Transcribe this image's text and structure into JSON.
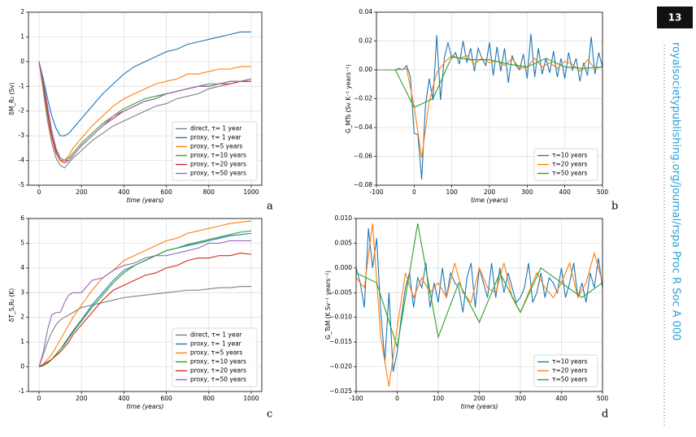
{
  "page_number": "13",
  "running_header": "royalsocietypublishing.org/journal/rspa  Proc R Soc A 000",
  "chart_data": [
    {
      "type": "line",
      "label": "a",
      "xlabel": "time (years)",
      "ylabel": "δM_R₂ (Sv)",
      "xlim": [
        -50,
        1050
      ],
      "xticks": [
        0,
        200,
        400,
        600,
        800,
        1000
      ],
      "ylim": [
        -5,
        2
      ],
      "yticks": [
        -5,
        -4,
        -3,
        -2,
        -1,
        0,
        1,
        2
      ],
      "grid": true,
      "legend": "lower right",
      "x": [
        0,
        20,
        40,
        60,
        80,
        100,
        120,
        140,
        160,
        200,
        250,
        300,
        350,
        400,
        450,
        500,
        550,
        600,
        650,
        700,
        750,
        800,
        850,
        900,
        950,
        1000
      ],
      "series": [
        {
          "name": "direct, τ= 1 year",
          "color": "#7f7f7f",
          "values": [
            0,
            -1.2,
            -2.4,
            -3.3,
            -3.9,
            -4.2,
            -4.3,
            -4.1,
            -3.9,
            -3.6,
            -3.2,
            -2.9,
            -2.6,
            -2.4,
            -2.2,
            -2.0,
            -1.8,
            -1.7,
            -1.5,
            -1.4,
            -1.3,
            -1.1,
            -1.0,
            -0.9,
            -0.8,
            -0.8
          ]
        },
        {
          "name": "proxy, τ= 1 year",
          "color": "#1f77b4",
          "values": [
            0,
            -0.7,
            -1.5,
            -2.2,
            -2.7,
            -3.0,
            -3.0,
            -2.9,
            -2.7,
            -2.3,
            -1.8,
            -1.3,
            -0.9,
            -0.5,
            -0.2,
            0.0,
            0.2,
            0.4,
            0.5,
            0.7,
            0.8,
            0.9,
            1.0,
            1.1,
            1.2,
            1.2
          ]
        },
        {
          "name": "proxy, τ=5 years",
          "color": "#ff7f0e",
          "values": [
            0,
            -1.1,
            -2.2,
            -3.1,
            -3.7,
            -4.0,
            -4.0,
            -3.8,
            -3.5,
            -3.1,
            -2.6,
            -2.2,
            -1.8,
            -1.5,
            -1.3,
            -1.1,
            -0.9,
            -0.8,
            -0.7,
            -0.5,
            -0.5,
            -0.4,
            -0.3,
            -0.3,
            -0.2,
            -0.2
          ]
        },
        {
          "name": "proxy, τ=10 years",
          "color": "#2ca02c",
          "values": [
            0,
            -1.0,
            -2.1,
            -3.0,
            -3.6,
            -3.9,
            -4.0,
            -3.9,
            -3.7,
            -3.3,
            -2.9,
            -2.5,
            -2.2,
            -1.9,
            -1.7,
            -1.5,
            -1.4,
            -1.3,
            -1.2,
            -1.1,
            -1.0,
            -0.9,
            -0.9,
            -0.8,
            -0.8,
            -0.7
          ]
        },
        {
          "name": "proxy, τ=20 years",
          "color": "#d62728",
          "values": [
            0,
            -0.9,
            -2.0,
            -3.0,
            -3.7,
            -4.0,
            -4.1,
            -4.0,
            -3.8,
            -3.4,
            -3.0,
            -2.6,
            -2.3,
            -2.0,
            -1.8,
            -1.6,
            -1.5,
            -1.3,
            -1.2,
            -1.1,
            -1.0,
            -1.0,
            -0.9,
            -0.9,
            -0.8,
            -0.8
          ]
        },
        {
          "name": "proxy, τ=50 years",
          "color": "#9467bd",
          "values": [
            0,
            -0.8,
            -1.8,
            -2.8,
            -3.5,
            -3.9,
            -4.0,
            -4.0,
            -3.8,
            -3.4,
            -3.0,
            -2.6,
            -2.2,
            -2.0,
            -1.8,
            -1.6,
            -1.5,
            -1.3,
            -1.2,
            -1.1,
            -1.0,
            -1.0,
            -0.9,
            -0.8,
            -0.8,
            -0.7
          ]
        }
      ]
    },
    {
      "type": "line",
      "label": "b",
      "xlabel": "time (years)",
      "ylabel": "G_MTs (Sv K⁻¹ years⁻¹)",
      "xlim": [
        -100,
        500
      ],
      "xticks": [
        -100,
        0,
        100,
        200,
        300,
        400,
        500
      ],
      "ylim": [
        -0.08,
        0.04
      ],
      "yticks": [
        {
          "value": -0.08,
          "label": "−0.08"
        },
        {
          "value": -0.06,
          "label": "−0.06"
        },
        {
          "value": -0.04,
          "label": "−0.04"
        },
        {
          "value": -0.02,
          "label": "−0.02"
        },
        {
          "value": 0,
          "label": "0.00"
        },
        0.02,
        0.04
      ],
      "grid": true,
      "legend": "lower right",
      "series": [
        {
          "name": "τ=10 years",
          "color": "#1f77b4",
          "x": [
            -100,
            -90,
            -80,
            -70,
            -60,
            -50,
            -40,
            -30,
            -20,
            -10,
            0,
            10,
            20,
            30,
            40,
            50,
            60,
            70,
            80,
            90,
            100,
            110,
            120,
            130,
            140,
            150,
            160,
            170,
            180,
            190,
            200,
            210,
            220,
            230,
            240,
            250,
            260,
            270,
            280,
            290,
            300,
            310,
            320,
            330,
            340,
            350,
            360,
            370,
            380,
            390,
            400,
            410,
            420,
            430,
            440,
            450,
            460,
            470,
            480,
            490,
            500
          ],
          "values": [
            0,
            0,
            0,
            0,
            0,
            0,
            0.001,
            0,
            0.003,
            -0.005,
            -0.044,
            -0.045,
            -0.076,
            -0.025,
            -0.006,
            -0.021,
            0.024,
            -0.021,
            0.008,
            0.019,
            0.008,
            0.012,
            0.004,
            0.02,
            0.005,
            0.015,
            -0.001,
            0.015,
            0.008,
            0.003,
            0.019,
            -0.004,
            0.016,
            -0.001,
            0.015,
            -0.009,
            0.01,
            0.003,
            0,
            0.011,
            -0.006,
            0.025,
            -0.005,
            0.015,
            -0.003,
            0.008,
            -0.002,
            0.013,
            -0.005,
            0.008,
            -0.006,
            0.012,
            0,
            0.008,
            -0.008,
            0.005,
            -0.004,
            0.023,
            -0.003,
            0.012,
            0.002
          ]
        },
        {
          "name": "τ=20 years",
          "color": "#ff7f0e",
          "x": [
            -100,
            -80,
            -60,
            -40,
            -20,
            0,
            20,
            40,
            60,
            80,
            100,
            120,
            140,
            160,
            180,
            200,
            220,
            240,
            260,
            280,
            300,
            320,
            340,
            360,
            380,
            400,
            420,
            440,
            460,
            480,
            500
          ],
          "values": [
            0,
            0,
            0,
            0,
            0.001,
            -0.025,
            -0.061,
            -0.022,
            -0.002,
            0.005,
            0.01,
            0.008,
            0.01,
            0.004,
            0.008,
            0.005,
            0.006,
            0.003,
            0.008,
            0.001,
            0.002,
            0.008,
            0.002,
            0.005,
            0.001,
            0.006,
            0.004,
            -0.001,
            0.007,
            0.001,
            0.002
          ]
        },
        {
          "name": "τ=50 years",
          "color": "#2ca02c",
          "x": [
            -100,
            -50,
            0,
            50,
            100,
            150,
            200,
            250,
            300,
            350,
            400,
            450,
            500
          ],
          "values": [
            0,
            0,
            -0.026,
            -0.02,
            0.009,
            0.007,
            0.007,
            0.004,
            0.002,
            0.008,
            0.002,
            0.001,
            0.002
          ]
        }
      ]
    },
    {
      "type": "line",
      "label": "c",
      "xlabel": "time (years)",
      "ylabel": "δT_S,R₂ (K)",
      "xlim": [
        -50,
        1050
      ],
      "xticks": [
        0,
        200,
        400,
        600,
        800,
        1000
      ],
      "ylim": [
        -1,
        6
      ],
      "yticks": [
        -1,
        0,
        1,
        2,
        3,
        4,
        5,
        6
      ],
      "grid": true,
      "legend": "lower right",
      "x": [
        0,
        20,
        40,
        60,
        80,
        100,
        120,
        140,
        160,
        200,
        250,
        300,
        350,
        400,
        450,
        500,
        550,
        600,
        650,
        700,
        750,
        800,
        850,
        900,
        950,
        1000
      ],
      "series": [
        {
          "name": "direct, τ= 1 year",
          "color": "#7f7f7f",
          "values": [
            0,
            0.5,
            1.0,
            1.4,
            1.7,
            1.9,
            2.0,
            2.1,
            2.2,
            2.4,
            2.5,
            2.6,
            2.7,
            2.8,
            2.85,
            2.9,
            2.95,
            3.0,
            3.05,
            3.1,
            3.1,
            3.15,
            3.2,
            3.2,
            3.25,
            3.25
          ]
        },
        {
          "name": "proxy, τ= 1 year",
          "color": "#1f77b4",
          "values": [
            0,
            0.05,
            0.15,
            0.3,
            0.5,
            0.7,
            0.95,
            1.2,
            1.45,
            1.9,
            2.5,
            3.0,
            3.5,
            3.9,
            4.1,
            4.3,
            4.5,
            4.7,
            4.8,
            4.9,
            5.0,
            5.1,
            5.2,
            5.3,
            5.35,
            5.4
          ]
        },
        {
          "name": "proxy, τ=5 years",
          "color": "#ff7f0e",
          "values": [
            0,
            0.1,
            0.3,
            0.5,
            0.8,
            1.1,
            1.4,
            1.7,
            2.0,
            2.5,
            3.1,
            3.6,
            3.9,
            4.3,
            4.5,
            4.7,
            4.9,
            5.1,
            5.2,
            5.4,
            5.5,
            5.6,
            5.7,
            5.8,
            5.85,
            5.9
          ]
        },
        {
          "name": "proxy, τ=10 years",
          "color": "#2ca02c",
          "values": [
            0,
            0.05,
            0.15,
            0.3,
            0.5,
            0.7,
            0.9,
            1.15,
            1.4,
            1.85,
            2.4,
            2.9,
            3.4,
            3.8,
            4.1,
            4.3,
            4.5,
            4.7,
            4.8,
            4.95,
            5.05,
            5.15,
            5.25,
            5.35,
            5.45,
            5.5
          ]
        },
        {
          "name": "proxy, τ=20 years",
          "color": "#d62728",
          "values": [
            0,
            0.1,
            0.2,
            0.3,
            0.45,
            0.6,
            0.8,
            1.0,
            1.3,
            1.7,
            2.2,
            2.7,
            3.1,
            3.3,
            3.5,
            3.7,
            3.8,
            4.0,
            4.1,
            4.3,
            4.4,
            4.4,
            4.5,
            4.5,
            4.6,
            4.55
          ]
        },
        {
          "name": "proxy, τ=50 years",
          "color": "#9467bd",
          "values": [
            0,
            0.6,
            1.5,
            2.1,
            2.2,
            2.2,
            2.6,
            2.9,
            3.0,
            3.0,
            3.5,
            3.6,
            3.9,
            4.1,
            4.2,
            4.4,
            4.5,
            4.5,
            4.6,
            4.7,
            4.8,
            5.0,
            5.0,
            5.1,
            5.1,
            5.1
          ]
        }
      ]
    },
    {
      "type": "line",
      "label": "d",
      "xlabel": "time (years)",
      "ylabel": "G_TsM (K Sv⁻¹ years⁻¹)",
      "xlim": [
        -100,
        500
      ],
      "xticks": [
        -100,
        0,
        100,
        200,
        300,
        400,
        500
      ],
      "ylim": [
        -0.025,
        0.01
      ],
      "yticks": [
        {
          "value": -0.025,
          "label": "−0.025"
        },
        {
          "value": -0.02,
          "label": "−0.020"
        },
        {
          "value": -0.015,
          "label": "−0.015"
        },
        {
          "value": -0.01,
          "label": "−0.010"
        },
        {
          "value": -0.005,
          "label": "−0.005"
        },
        {
          "value": 0,
          "label": "0.000"
        },
        0.005,
        {
          "value": 0.01,
          "label": "0.010"
        }
      ],
      "grid": true,
      "legend": "lower right",
      "series": [
        {
          "name": "τ=10 years",
          "color": "#1f77b4",
          "x": [
            -100,
            -90,
            -80,
            -70,
            -60,
            -50,
            -40,
            -30,
            -20,
            -10,
            0,
            10,
            20,
            30,
            40,
            50,
            60,
            70,
            80,
            90,
            100,
            110,
            120,
            130,
            140,
            150,
            160,
            170,
            180,
            190,
            200,
            210,
            220,
            230,
            240,
            250,
            260,
            270,
            280,
            290,
            300,
            310,
            320,
            330,
            340,
            350,
            360,
            370,
            380,
            390,
            400,
            410,
            420,
            430,
            440,
            450,
            460,
            470,
            480,
            490,
            500
          ],
          "values": [
            0,
            -0.003,
            -0.008,
            0.008,
            0,
            0.006,
            -0.009,
            -0.019,
            -0.005,
            -0.021,
            -0.017,
            -0.01,
            -0.004,
            -0.001,
            -0.008,
            -0.002,
            -0.004,
            0.001,
            -0.008,
            -0.003,
            -0.007,
            0,
            -0.006,
            -0.001,
            -0.003,
            -0.004,
            -0.009,
            -0.002,
            0.001,
            -0.008,
            0,
            -0.003,
            -0.006,
            0.001,
            -0.006,
            0,
            -0.005,
            -0.001,
            -0.004,
            -0.007,
            -0.006,
            -0.004,
            0.001,
            -0.007,
            -0.005,
            -0.001,
            -0.006,
            -0.002,
            -0.003,
            -0.005,
            0,
            -0.006,
            -0.003,
            0.001,
            -0.006,
            -0.003,
            -0.007,
            -0.001,
            -0.004,
            0.002,
            -0.004
          ]
        },
        {
          "name": "τ=20 years",
          "color": "#ff7f0e",
          "x": [
            -100,
            -80,
            -60,
            -40,
            -20,
            0,
            20,
            40,
            60,
            80,
            100,
            120,
            140,
            160,
            180,
            200,
            220,
            240,
            260,
            280,
            300,
            320,
            340,
            360,
            380,
            400,
            420,
            440,
            460,
            480,
            500
          ],
          "values": [
            -0.002,
            -0.004,
            0.009,
            -0.014,
            -0.024,
            -0.012,
            -0.001,
            -0.006,
            -0.002,
            -0.005,
            -0.003,
            -0.006,
            0.001,
            -0.005,
            -0.007,
            0,
            -0.004,
            -0.005,
            0.001,
            -0.006,
            -0.009,
            -0.005,
            -0.001,
            -0.004,
            -0.006,
            -0.003,
            0.001,
            -0.006,
            -0.003,
            0.003,
            -0.003
          ]
        },
        {
          "name": "τ=50 years",
          "color": "#2ca02c",
          "x": [
            -100,
            -50,
            0,
            50,
            100,
            150,
            200,
            250,
            300,
            350,
            400,
            450,
            500
          ],
          "values": [
            -0.001,
            -0.003,
            -0.016,
            0.009,
            -0.014,
            -0.003,
            -0.011,
            -0.001,
            -0.009,
            0,
            -0.003,
            -0.006,
            -0.003
          ]
        }
      ]
    }
  ]
}
